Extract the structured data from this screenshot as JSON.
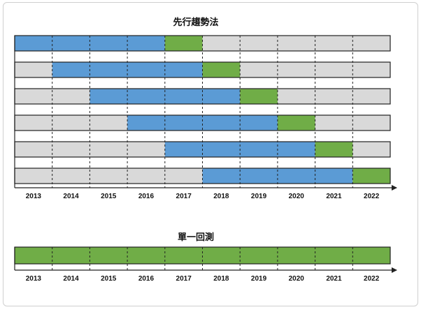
{
  "colors": {
    "train": "#5b9bd5",
    "test": "#70ad47",
    "idle": "#d9d9d9",
    "border": "#222222"
  },
  "walk_forward": {
    "title": "先行趨勢法",
    "years": [
      "2013",
      "2014",
      "2015",
      "2016",
      "2017",
      "2018",
      "2019",
      "2020",
      "2021",
      "2022"
    ],
    "rows": [
      {
        "train_start": 0,
        "train_end": 4,
        "test_start": 4,
        "test_end": 5
      },
      {
        "train_start": 1,
        "train_end": 5,
        "test_start": 5,
        "test_end": 6
      },
      {
        "train_start": 2,
        "train_end": 6,
        "test_start": 6,
        "test_end": 7
      },
      {
        "train_start": 3,
        "train_end": 7,
        "test_start": 7,
        "test_end": 8
      },
      {
        "train_start": 4,
        "train_end": 8,
        "test_start": 8,
        "test_end": 9
      },
      {
        "train_start": 5,
        "train_end": 9,
        "test_start": 9,
        "test_end": 10
      }
    ]
  },
  "single_backtest": {
    "title": "單一回測",
    "years": [
      "2013",
      "2014",
      "2015",
      "2016",
      "2017",
      "2018",
      "2019",
      "2020",
      "2021",
      "2022"
    ],
    "test_start": 0,
    "test_end": 10
  }
}
